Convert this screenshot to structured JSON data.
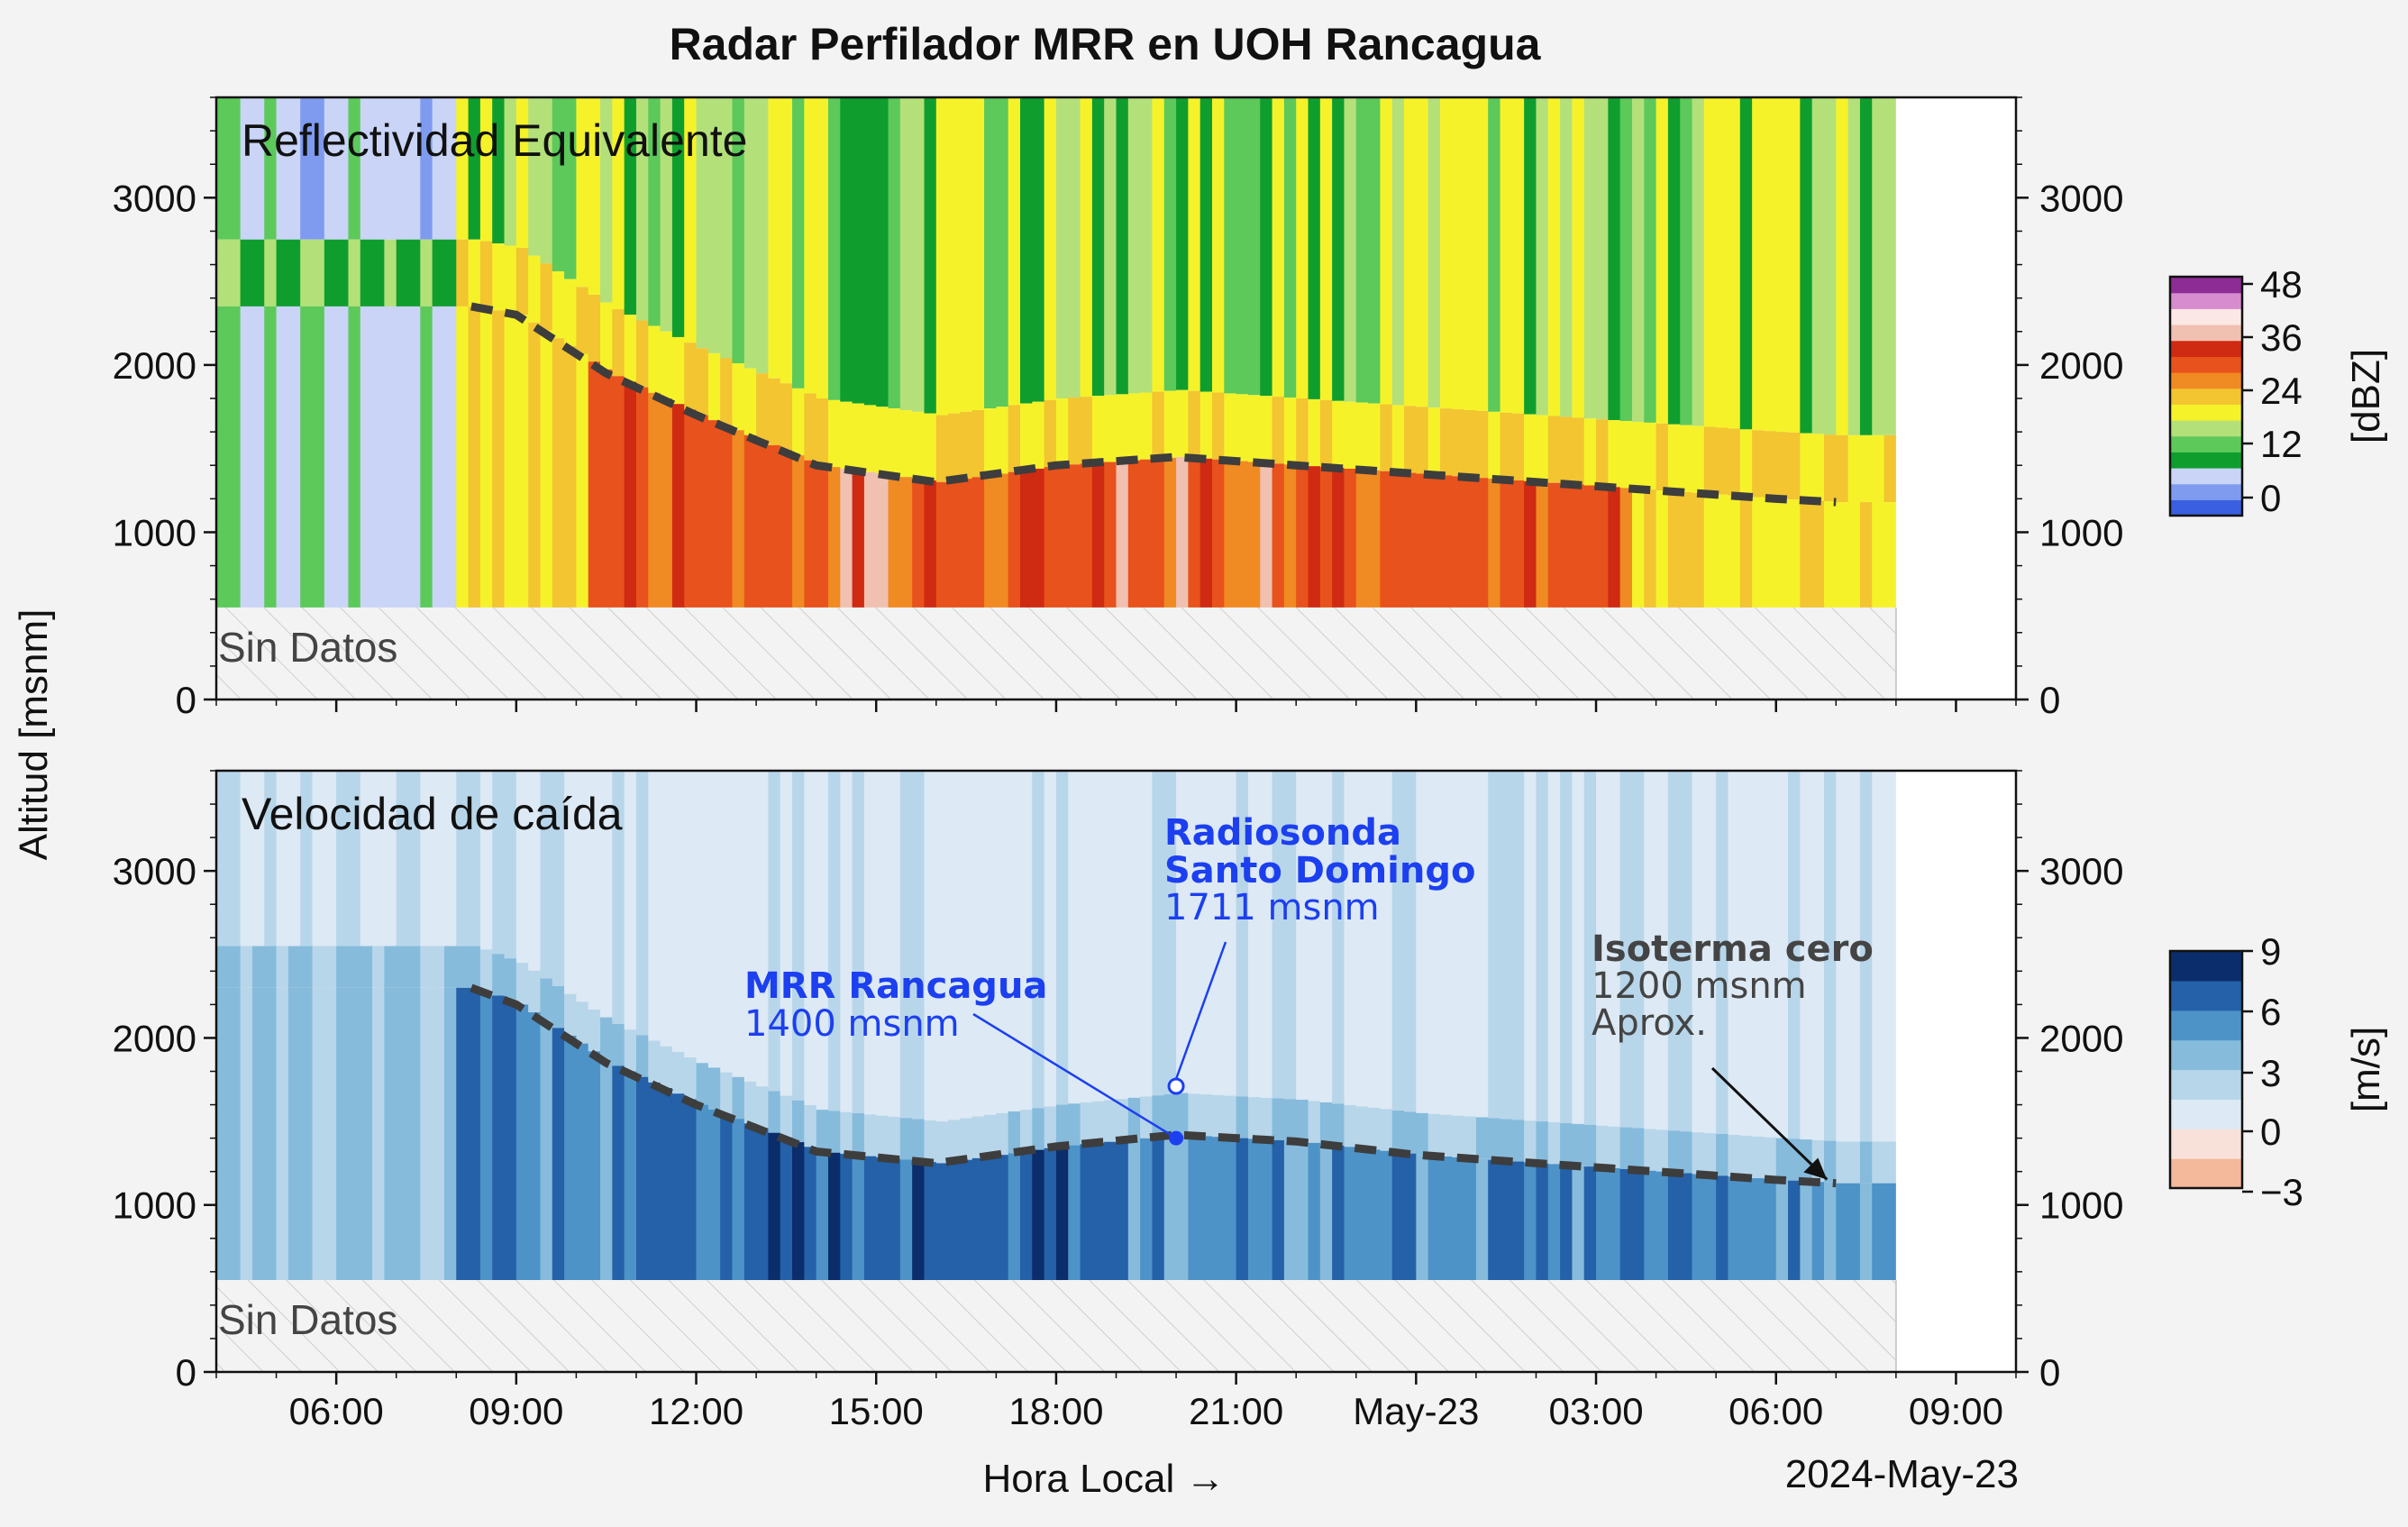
{
  "figure": {
    "title": "Radar Perfilador MRR en UOH Rancagua",
    "ylabel": "Altitud [msnm]",
    "xlabel": "Hora Local →",
    "date_label": "2024-May-23",
    "nodata_label": "Sin Datos"
  },
  "chart_data": [
    {
      "type": "heatmap",
      "title": "Reflectividad Equivalente",
      "units": "[dBZ]",
      "x_axis": {
        "start": "2024-05-22 04:00",
        "end": "2024-05-23 10:00",
        "data_end": "2024-05-23 08:00",
        "tick_labels": [
          "06:00",
          "09:00",
          "12:00",
          "15:00",
          "18:00",
          "21:00",
          "May-23",
          "03:00",
          "06:00",
          "09:00"
        ]
      },
      "y_axis": {
        "ylim": [
          0,
          3600
        ],
        "ticks": [
          0,
          1000,
          2000,
          3000
        ]
      },
      "nodata_below_m": 550,
      "colorbar": {
        "ticks": [
          "0",
          "12",
          "24",
          "36",
          "48"
        ],
        "range": [
          -5,
          50
        ],
        "colors": [
          "#3a5fe0",
          "#7f9bf0",
          "#c9d4f7",
          "#0f9e2e",
          "#5cc95a",
          "#b4e07a",
          "#f6f22a",
          "#f2c531",
          "#f08a22",
          "#e8521c",
          "#cf2a12",
          "#f0c0b0",
          "#fbe7e5",
          "#d88cd0",
          "#8e2c95"
        ]
      },
      "isotherm_line": {
        "x": [
          "2024-05-22 08:15",
          "2024-05-22 09:00",
          "2024-05-22 10:30",
          "2024-05-22 12:00",
          "2024-05-22 14:00",
          "2024-05-22 16:00",
          "2024-05-22 18:00",
          "2024-05-22 20:00",
          "2024-05-22 22:00",
          "2024-05-23 00:00",
          "2024-05-23 02:00",
          "2024-05-23 04:00",
          "2024-05-23 06:00",
          "2024-05-23 07:00"
        ],
        "y": [
          2350,
          2300,
          1950,
          1700,
          1400,
          1300,
          1400,
          1450,
          1400,
          1350,
          1300,
          1250,
          1200,
          1180
        ]
      }
    },
    {
      "type": "heatmap",
      "title": "Velocidad de caída",
      "units": "[m/s]",
      "x_axis": {
        "start": "2024-05-22 04:00",
        "end": "2024-05-23 10:00",
        "data_end": "2024-05-23 08:00",
        "tick_labels": [
          "06:00",
          "09:00",
          "12:00",
          "15:00",
          "18:00",
          "21:00",
          "May-23",
          "03:00",
          "06:00",
          "09:00"
        ]
      },
      "y_axis": {
        "ylim": [
          0,
          3600
        ],
        "ticks": [
          0,
          1000,
          2000,
          3000
        ]
      },
      "nodata_below_m": 550,
      "colorbar": {
        "ticks": [
          "9",
          "6",
          "3",
          "0",
          "−3"
        ],
        "range": [
          -4.5,
          9
        ],
        "colors": [
          "#f4b89a",
          "#f7e1d8",
          "#dde9f4",
          "#b8d6ea",
          "#86bbdc",
          "#4d93c8",
          "#2461a8",
          "#0b2d6b"
        ]
      },
      "isotherm_line": {
        "x": [
          "2024-05-22 08:15",
          "2024-05-22 09:00",
          "2024-05-22 10:30",
          "2024-05-22 12:00",
          "2024-05-22 14:00",
          "2024-05-22 16:00",
          "2024-05-22 18:00",
          "2024-05-22 20:00",
          "2024-05-22 22:00",
          "2024-05-23 00:00",
          "2024-05-23 02:00",
          "2024-05-23 04:00",
          "2024-05-23 06:00",
          "2024-05-23 07:00"
        ],
        "y": [
          2300,
          2200,
          1850,
          1600,
          1320,
          1250,
          1350,
          1420,
          1380,
          1300,
          1250,
          1200,
          1150,
          1130
        ]
      },
      "annotations": [
        {
          "bold": "MRR Rancagua",
          "text": [
            "1400 msnm"
          ],
          "x": "2024-05-22 20:00",
          "y": 1400,
          "color": "#1c3ff0"
        },
        {
          "bold": "Radiosonda",
          "bold2": "Santo Domingo",
          "text": [
            "1711 msnm"
          ],
          "x": "2024-05-22 20:00",
          "y": 1711,
          "color": "#1c3ff0"
        },
        {
          "bold": "Isoterma cero",
          "text": [
            "1200 msnm",
            "Aprox."
          ],
          "x": "2024-05-23 07:00",
          "y": 1120,
          "color": "#444444"
        }
      ]
    }
  ]
}
